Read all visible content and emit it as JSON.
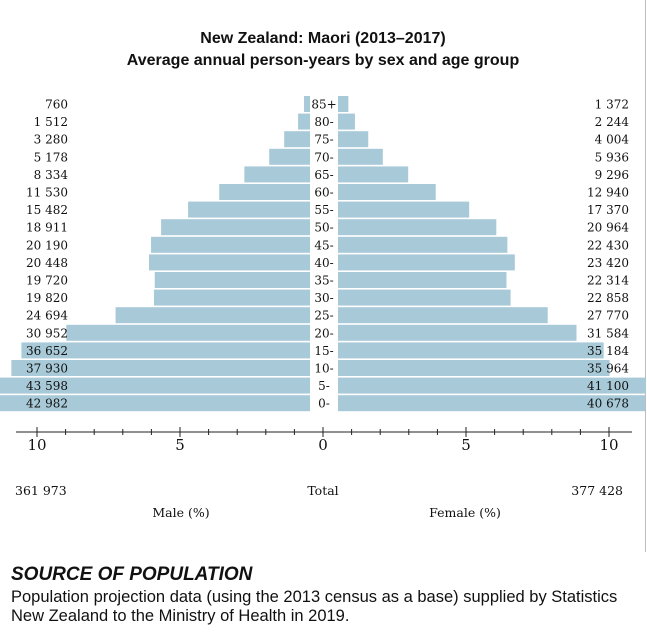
{
  "chart_data": {
    "type": "bar",
    "orientation": "horizontal-pyramid",
    "title": "New Zealand: Maori (2013–2017)",
    "subtitle": "Average annual person-years by sex and age group",
    "categories": [
      "85+",
      "80-",
      "75-",
      "70-",
      "65-",
      "60-",
      "55-",
      "50-",
      "45-",
      "40-",
      "35-",
      "30-",
      "25-",
      "20-",
      "15-",
      "10-",
      "5-",
      "0-"
    ],
    "series": [
      {
        "name": "Male (%)",
        "counts": [
          "760",
          "1 512",
          "3 280",
          "5 178",
          "8 334",
          "11 530",
          "15 482",
          "18 911",
          "20 190",
          "20 448",
          "19 720",
          "19 820",
          "24 694",
          "30 952",
          "36 652",
          "37 930",
          "43 598",
          "42 982"
        ],
        "values": [
          760,
          1512,
          3280,
          5178,
          8334,
          11530,
          15482,
          18911,
          20190,
          20448,
          19720,
          19820,
          24694,
          30952,
          36652,
          37930,
          43598,
          42982
        ],
        "total": "361 973",
        "total_value": 361973
      },
      {
        "name": "Female (%)",
        "counts": [
          "1 372",
          "2 244",
          "4 004",
          "5 936",
          "9 296",
          "12 940",
          "17 370",
          "20 964",
          "22 430",
          "23 420",
          "22 314",
          "22 858",
          "27 770",
          "31 584",
          "35 184",
          "35 964",
          "41 100",
          "40 678"
        ],
        "values": [
          1372,
          2244,
          4004,
          5936,
          9296,
          12940,
          17370,
          20964,
          22430,
          23420,
          22314,
          22858,
          27770,
          31584,
          35184,
          35964,
          41100,
          40678
        ],
        "total": "377 428",
        "total_value": 377428
      }
    ],
    "x_ticks": [
      "10",
      "5",
      "0",
      "5",
      "10"
    ],
    "xlim": [
      0,
      10
    ],
    "total_label": "Total",
    "grid": false,
    "colors": {
      "bar": "#a8cad8",
      "text": "#111111"
    }
  },
  "source": {
    "heading": "SOURCE OF POPULATION",
    "text": "Population projection data (using the 2013 census as a base) supplied by Statistics New Zealand to the Ministry of Health in 2019."
  }
}
